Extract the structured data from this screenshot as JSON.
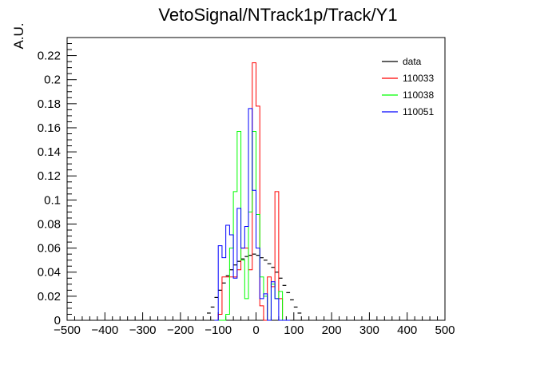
{
  "chart_data": {
    "type": "histogram",
    "title": "VetoSignal/NTrack1p/Track/Y1",
    "xlabel": "",
    "ylabel": "A.U.",
    "xlim": [
      -500,
      500
    ],
    "ylim": [
      0,
      0.235
    ],
    "x_ticks": [
      -500,
      -400,
      -300,
      -200,
      -100,
      0,
      100,
      200,
      300,
      400,
      500
    ],
    "x_tick_labels": [
      "−500",
      "−400",
      "−300",
      "−200",
      "−100",
      "0",
      "100",
      "200",
      "300",
      "400",
      "500"
    ],
    "y_ticks": [
      0,
      0.02,
      0.04,
      0.06,
      0.08,
      0.1,
      0.12,
      0.14,
      0.16,
      0.18,
      0.2,
      0.22
    ],
    "y_tick_labels": [
      "0",
      "0.02",
      "0.04",
      "0.06",
      "0.08",
      "0.1",
      "0.12",
      "0.14",
      "0.16",
      "0.18",
      "0.2",
      "0.22"
    ],
    "bin_edges_start": -110,
    "bin_width": 10,
    "legend_position": "top-right",
    "series": [
      {
        "name": "data",
        "color": "#000000",
        "style": "markers",
        "bins": [
          -125,
          -115,
          -105,
          -95,
          -85,
          -75,
          -65,
          -55,
          -45,
          -35,
          -25,
          -15,
          -5,
          5,
          15,
          25,
          35,
          45,
          55,
          65,
          75,
          85,
          95,
          105,
          115
        ],
        "values": [
          0.006,
          0.011,
          0.019,
          0.025,
          0.031,
          0.037,
          0.042,
          0.046,
          0.049,
          0.051,
          0.053,
          0.054,
          0.055,
          0.054,
          0.052,
          0.05,
          0.047,
          0.044,
          0.04,
          0.035,
          0.029,
          0.023,
          0.017,
          0.011,
          0.006
        ]
      },
      {
        "name": "110033",
        "color": "#ff0000",
        "style": "step",
        "values": [
          0,
          0.005,
          0.036,
          0.036,
          0.036,
          0.036,
          0.042,
          0.06,
          0.06,
          0.042,
          0.214,
          0.178,
          0.012,
          0.0,
          0.036,
          0.028,
          0.107,
          0.018,
          0.0,
          0.0
        ]
      },
      {
        "name": "110038",
        "color": "#00ff00",
        "style": "step",
        "values": [
          0,
          0,
          0,
          0.005,
          0.06,
          0.107,
          0.157,
          0.05,
          0.018,
          0.09,
          0.157,
          0.088,
          0.036,
          0.02,
          0.0,
          0.03,
          0.018,
          0.024,
          0.0,
          0.0
        ]
      },
      {
        "name": "110051",
        "color": "#0000ff",
        "style": "step",
        "values": [
          0,
          0.062,
          0.052,
          0.079,
          0.071,
          0.035,
          0.093,
          0.06,
          0.078,
          0.176,
          0.108,
          0.06,
          0.018,
          0.022,
          0.0,
          0.032,
          0.018,
          0.0,
          0.0,
          0.0
        ]
      }
    ]
  }
}
